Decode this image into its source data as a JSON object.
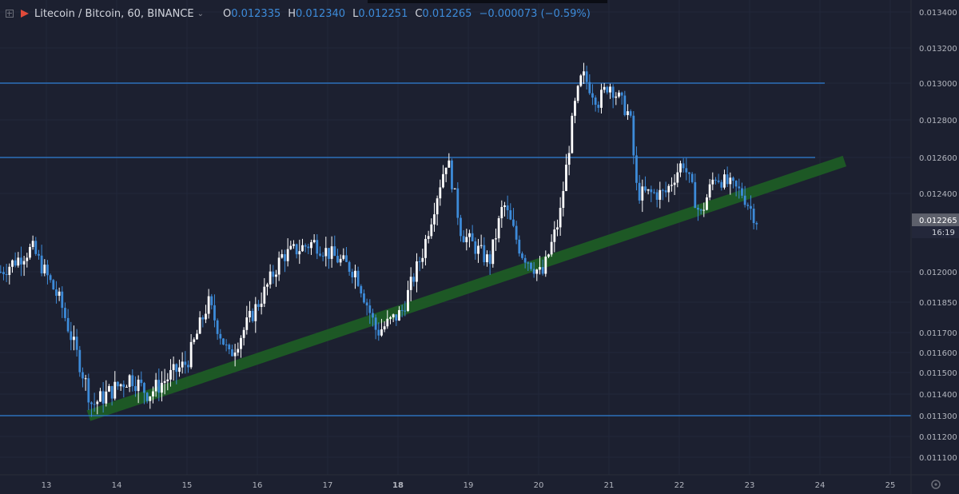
{
  "header": {
    "symbol": "Litecoin / Bitcoin, 60, BINANCE",
    "open_label": "O",
    "open": "0.012335",
    "high_label": "H",
    "high": "0.012340",
    "low_label": "L",
    "low": "0.012251",
    "close_label": "C",
    "close": "0.012265",
    "change": "−0.000073 (−0.59%)"
  },
  "colors": {
    "background": "#1c2030",
    "up_candle": "#ffffff",
    "down_candle": "#3d8bd9",
    "horizontal_lines": "#2f7fd6",
    "trend_band": "#1e5e25",
    "grid": "#22273a",
    "axis_text": "#b2b5be"
  },
  "chart_data": {
    "type": "candlestick",
    "x_ticks": [
      "13",
      "14",
      "15",
      "16",
      "17",
      "18",
      "19",
      "20",
      "21",
      "22",
      "23",
      "24",
      "25"
    ],
    "y_ticks": [
      "0.013400",
      "0.013200",
      "0.013000",
      "0.012800",
      "0.012600",
      "0.012400",
      "0.012000",
      "0.011850",
      "0.011700",
      "0.011600",
      "0.011500",
      "0.011400",
      "0.011300",
      "0.011200",
      "0.011100"
    ],
    "last_price": "0.012265",
    "countdown": "16:19",
    "horizontal_levels": [
      0.013,
      0.0126,
      0.0113
    ],
    "trend_band": {
      "from": {
        "day": 13.6,
        "price": 0.0113
      },
      "to": {
        "day": 24.35,
        "price": 0.01258
      }
    },
    "key_points": [
      {
        "day": 12.35,
        "price": 0.012
      },
      {
        "day": 12.8,
        "price": 0.01212
      },
      {
        "day": 13.2,
        "price": 0.01185
      },
      {
        "day": 13.65,
        "price": 0.01135
      },
      {
        "day": 14.2,
        "price": 0.01148
      },
      {
        "day": 14.45,
        "price": 0.0114
      },
      {
        "day": 15.0,
        "price": 0.01155
      },
      {
        "day": 15.3,
        "price": 0.01185
      },
      {
        "day": 15.6,
        "price": 0.01158
      },
      {
        "day": 16.1,
        "price": 0.0119
      },
      {
        "day": 16.35,
        "price": 0.01208
      },
      {
        "day": 16.8,
        "price": 0.01215
      },
      {
        "day": 17.4,
        "price": 0.012
      },
      {
        "day": 17.7,
        "price": 0.0117
      },
      {
        "day": 18.05,
        "price": 0.0118
      },
      {
        "day": 18.35,
        "price": 0.0121
      },
      {
        "day": 18.7,
        "price": 0.0126
      },
      {
        "day": 18.9,
        "price": 0.0122
      },
      {
        "day": 19.3,
        "price": 0.01205
      },
      {
        "day": 19.5,
        "price": 0.01235
      },
      {
        "day": 19.75,
        "price": 0.0121
      },
      {
        "day": 20.05,
        "price": 0.01198
      },
      {
        "day": 20.3,
        "price": 0.01228
      },
      {
        "day": 20.5,
        "price": 0.01285
      },
      {
        "day": 20.62,
        "price": 0.01305
      },
      {
        "day": 20.85,
        "price": 0.0129
      },
      {
        "day": 21.0,
        "price": 0.013
      },
      {
        "day": 21.3,
        "price": 0.01282
      },
      {
        "day": 21.4,
        "price": 0.0124
      },
      {
        "day": 21.8,
        "price": 0.0124
      },
      {
        "day": 22.05,
        "price": 0.01258
      },
      {
        "day": 22.3,
        "price": 0.01228
      },
      {
        "day": 22.5,
        "price": 0.0125
      },
      {
        "day": 22.9,
        "price": 0.0124
      },
      {
        "day": 23.1,
        "price": 0.012265
      }
    ]
  }
}
